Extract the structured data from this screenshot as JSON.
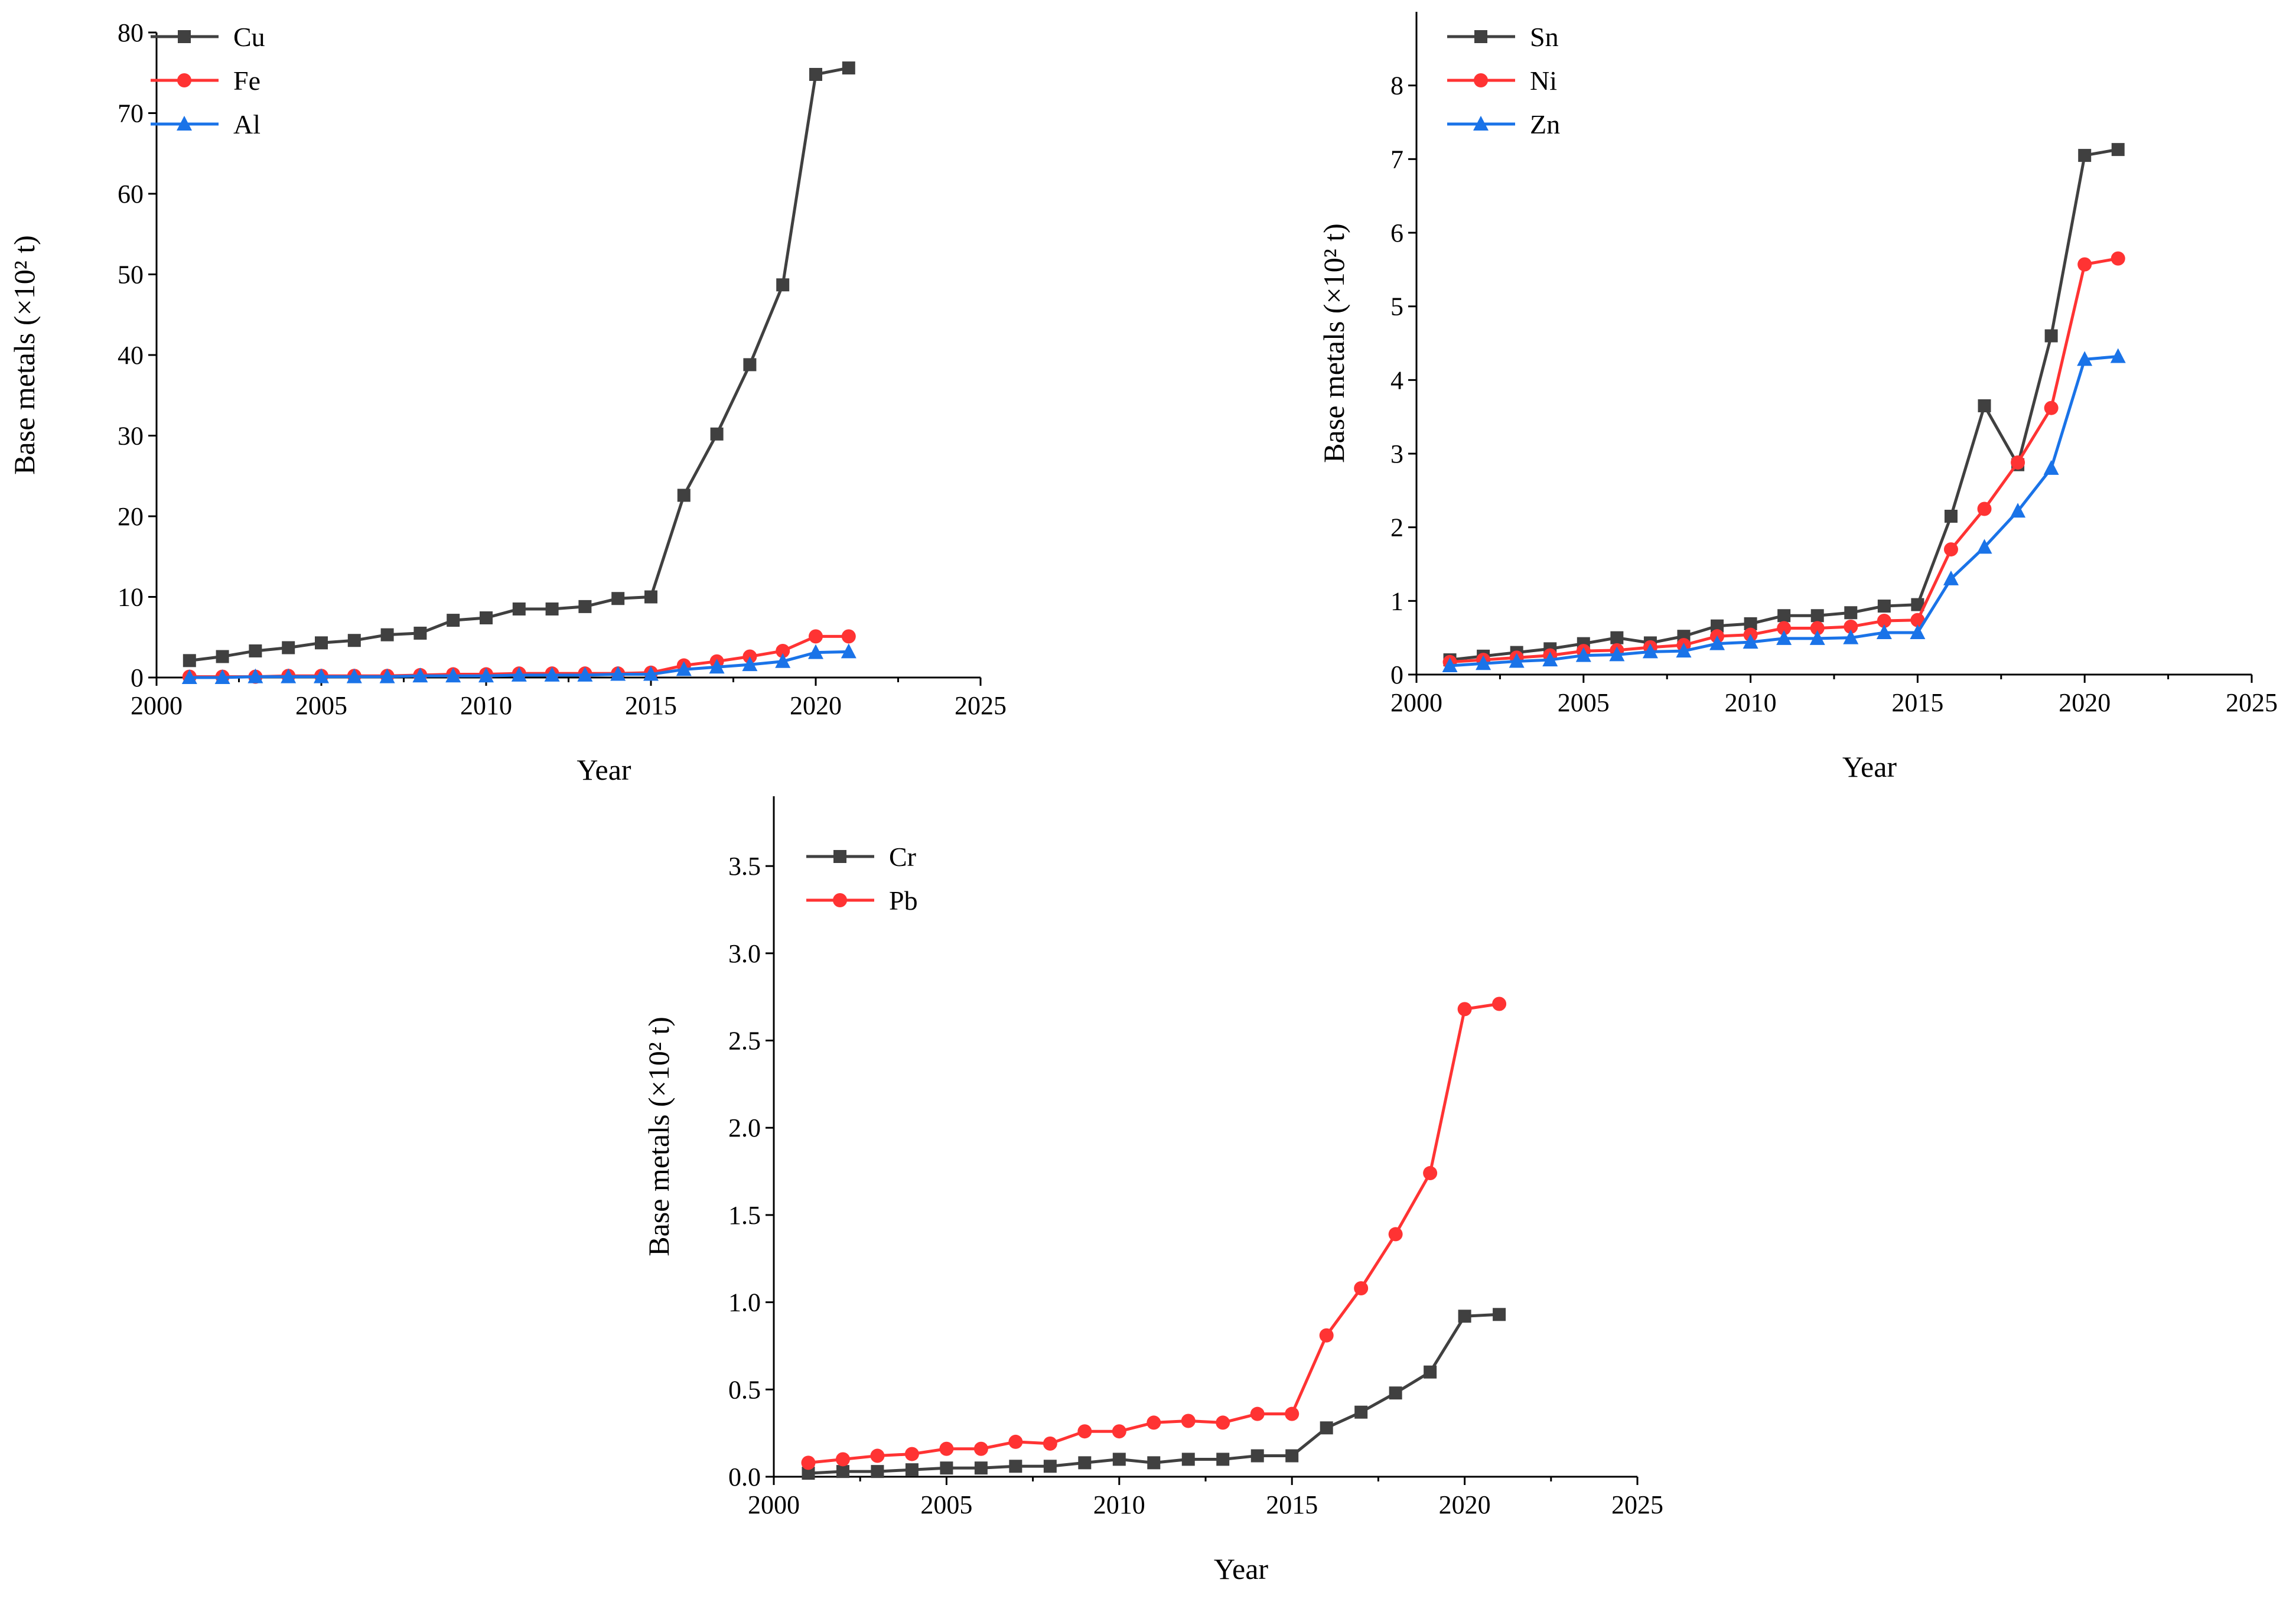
{
  "chart_data": [
    {
      "type": "line",
      "xlabel": "Year",
      "ylabel": "Base metals (×10² t)",
      "xlim": [
        2000,
        2025
      ],
      "ylim": [
        0,
        80
      ],
      "xticks": [
        "2000",
        "2005",
        "2010",
        "2015",
        "2020",
        "2025"
      ],
      "yticks": [
        "0",
        "10",
        "20",
        "30",
        "40",
        "50",
        "60",
        "70",
        "80"
      ],
      "x": [
        2001,
        2002,
        2003,
        2004,
        2005,
        2006,
        2007,
        2008,
        2009,
        2010,
        2011,
        2012,
        2013,
        2014,
        2015,
        2016,
        2017,
        2018,
        2019,
        2020,
        2021
      ],
      "legend_position": "top-left",
      "series": [
        {
          "name": "Cu",
          "color": "#404040",
          "marker": "square",
          "values": [
            2.1,
            2.6,
            3.3,
            3.7,
            4.3,
            4.6,
            5.3,
            5.5,
            7.1,
            7.4,
            8.5,
            8.5,
            8.8,
            9.8,
            10.0,
            22.6,
            30.2,
            38.8,
            48.7,
            74.8,
            75.6
          ]
        },
        {
          "name": "Fe",
          "color": "#ff3333",
          "marker": "circle",
          "values": [
            0.1,
            0.1,
            0.1,
            0.2,
            0.2,
            0.2,
            0.2,
            0.3,
            0.4,
            0.4,
            0.5,
            0.5,
            0.5,
            0.5,
            0.6,
            1.5,
            2.0,
            2.6,
            3.3,
            5.1,
            5.1
          ]
        },
        {
          "name": "Al",
          "color": "#1a73e8",
          "marker": "triangle",
          "values": [
            0.0,
            0.0,
            0.1,
            0.1,
            0.1,
            0.1,
            0.1,
            0.2,
            0.2,
            0.2,
            0.3,
            0.3,
            0.3,
            0.4,
            0.4,
            1.0,
            1.3,
            1.6,
            2.0,
            3.1,
            3.2
          ]
        }
      ]
    },
    {
      "type": "line",
      "xlabel": "Year",
      "ylabel": "Base metals (×10² t)",
      "xlim": [
        2000,
        2025
      ],
      "ylim": [
        0,
        9
      ],
      "xticks": [
        "2000",
        "2005",
        "2010",
        "2015",
        "2020",
        "2025"
      ],
      "yticks": [
        "0",
        "1",
        "2",
        "3",
        "4",
        "5",
        "6",
        "7",
        "8"
      ],
      "x": [
        2001,
        2002,
        2003,
        2004,
        2005,
        2006,
        2007,
        2008,
        2009,
        2010,
        2011,
        2012,
        2013,
        2014,
        2015,
        2016,
        2017,
        2018,
        2019,
        2020,
        2021
      ],
      "legend_position": "top-left",
      "series": [
        {
          "name": "Sn",
          "color": "#404040",
          "marker": "square",
          "values": [
            0.2,
            0.25,
            0.3,
            0.35,
            0.42,
            0.5,
            0.43,
            0.52,
            0.66,
            0.69,
            0.8,
            0.8,
            0.84,
            0.93,
            0.95,
            2.15,
            3.65,
            2.85,
            4.6,
            7.05,
            7.13
          ]
        },
        {
          "name": "Ni",
          "color": "#ff3333",
          "marker": "circle",
          "values": [
            0.17,
            0.2,
            0.23,
            0.26,
            0.32,
            0.33,
            0.37,
            0.4,
            0.52,
            0.54,
            0.63,
            0.63,
            0.65,
            0.73,
            0.74,
            1.7,
            2.25,
            2.88,
            3.62,
            5.57,
            5.65
          ]
        },
        {
          "name": "Zn",
          "color": "#1a73e8",
          "marker": "triangle",
          "values": [
            0.12,
            0.15,
            0.18,
            0.2,
            0.26,
            0.27,
            0.31,
            0.32,
            0.42,
            0.44,
            0.49,
            0.49,
            0.5,
            0.57,
            0.57,
            1.3,
            1.73,
            2.22,
            2.8,
            4.28,
            4.32
          ]
        }
      ]
    },
    {
      "type": "line",
      "xlabel": "Year",
      "ylabel": "Base metals (×10² t)",
      "xlim": [
        2000,
        2025
      ],
      "ylim": [
        0,
        3.9
      ],
      "xticks": [
        "2000",
        "2005",
        "2010",
        "2015",
        "2020",
        "2025"
      ],
      "yticks": [
        "0.0",
        "0.5",
        "1.0",
        "1.5",
        "2.0",
        "2.5",
        "3.0",
        "3.5"
      ],
      "x": [
        2001,
        2002,
        2003,
        2004,
        2005,
        2006,
        2007,
        2008,
        2009,
        2010,
        2011,
        2012,
        2013,
        2014,
        2015,
        2016,
        2017,
        2018,
        2019,
        2020,
        2021
      ],
      "legend_position": "top-left",
      "series": [
        {
          "name": "Cr",
          "color": "#404040",
          "marker": "square",
          "values": [
            0.02,
            0.03,
            0.03,
            0.04,
            0.05,
            0.05,
            0.06,
            0.06,
            0.08,
            0.1,
            0.08,
            0.1,
            0.1,
            0.12,
            0.12,
            0.28,
            0.37,
            0.48,
            0.6,
            0.92,
            0.93
          ]
        },
        {
          "name": "Pb",
          "color": "#ff3333",
          "marker": "circle",
          "values": [
            0.08,
            0.1,
            0.12,
            0.13,
            0.16,
            0.16,
            0.2,
            0.19,
            0.26,
            0.26,
            0.31,
            0.32,
            0.31,
            0.36,
            0.36,
            0.81,
            1.08,
            1.39,
            1.74,
            2.68,
            2.71
          ]
        }
      ]
    }
  ]
}
